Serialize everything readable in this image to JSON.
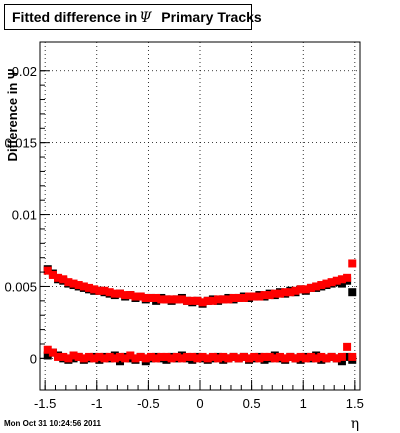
{
  "title": {
    "prefix": "Fitted difference in",
    "symbol": "Ψ",
    "suffix": "Primary Tracks"
  },
  "timestamp": "Mon Oct 31 10:24:56 2011",
  "colors": {
    "series_black": "#000000",
    "series_red": "#ff0000",
    "grid": "#000000"
  },
  "chart_data": {
    "type": "scatter",
    "title": "Fitted difference in Ψ   Primary Tracks",
    "xlabel": "η",
    "ylabel": "Difference in Ψ",
    "xlim": [
      -1.55,
      1.55
    ],
    "ylim": [
      -0.0022,
      0.022
    ],
    "grid": true,
    "x_ticks": [
      -1.5,
      -1,
      -0.5,
      0,
      0.5,
      1,
      1.5
    ],
    "x_tick_labels": [
      "-1.5",
      "-1",
      "-0.5",
      "0",
      "0.5",
      "1",
      "1.5"
    ],
    "y_ticks": [
      0,
      0.005,
      0.01,
      0.015,
      0.02
    ],
    "y_tick_labels": [
      "0",
      "0.005",
      "0.01",
      "0.015",
      "0.02"
    ],
    "x": [
      -1.475,
      -1.425,
      -1.375,
      -1.325,
      -1.275,
      -1.225,
      -1.175,
      -1.125,
      -1.075,
      -1.025,
      -0.975,
      -0.925,
      -0.875,
      -0.825,
      -0.775,
      -0.725,
      -0.675,
      -0.625,
      -0.575,
      -0.525,
      -0.475,
      -0.425,
      -0.375,
      -0.325,
      -0.275,
      -0.225,
      -0.175,
      -0.125,
      -0.075,
      -0.025,
      0.025,
      0.075,
      0.125,
      0.175,
      0.225,
      0.275,
      0.325,
      0.375,
      0.425,
      0.475,
      0.525,
      0.575,
      0.625,
      0.675,
      0.725,
      0.775,
      0.825,
      0.875,
      0.925,
      0.975,
      1.025,
      1.075,
      1.125,
      1.175,
      1.225,
      1.275,
      1.325,
      1.375,
      1.425,
      1.475
    ],
    "series": [
      {
        "color": "#000000",
        "marker": "square",
        "values": [
          0.0062,
          0.0059,
          0.0055,
          0.0054,
          0.0052,
          0.0051,
          0.005,
          0.0049,
          0.0048,
          0.0047,
          0.0047,
          0.0046,
          0.0045,
          0.0044,
          0.0045,
          0.0043,
          0.0044,
          0.0042,
          0.0043,
          0.0041,
          0.0042,
          0.004,
          0.0042,
          0.0041,
          0.004,
          0.0041,
          0.0042,
          0.004,
          0.0039,
          0.004,
          0.0038,
          0.004,
          0.0041,
          0.004,
          0.0041,
          0.0042,
          0.0041,
          0.0042,
          0.0043,
          0.0042,
          0.0043,
          0.0044,
          0.0043,
          0.0045,
          0.0044,
          0.0046,
          0.0045,
          0.0047,
          0.0046,
          0.0048,
          0.0047,
          0.0049,
          0.0049,
          0.005,
          0.0051,
          0.0052,
          0.0053,
          0.0052,
          0.0054,
          0.0046
        ]
      },
      {
        "color": "#000000",
        "marker": "square",
        "values": [
          0.0002,
          0.0004,
          0.0002,
          0.0,
          -0.0001,
          0.0,
          0.0001,
          -0.0001,
          0.0,
          0.0001,
          -0.0001,
          0.0001,
          0.0,
          0.0002,
          -0.0002,
          0.0001,
          0.0,
          -0.0001,
          0.0001,
          -0.0002,
          0.0,
          0.0001,
          0.0,
          -0.0001,
          0.0001,
          0.0,
          0.0002,
          0.0,
          -0.0001,
          0.0001,
          0.0,
          -0.0001,
          0.0,
          0.0001,
          -0.0001,
          0.0,
          0.0001,
          0.0,
          0.0001,
          -0.0001,
          0.0,
          0.0001,
          -0.0001,
          0.0,
          0.0002,
          0.0,
          -0.0001,
          0.0001,
          0.0,
          -0.0001,
          0.0001,
          0.0,
          0.0002,
          -0.0001,
          0.0,
          0.0001,
          0.0,
          -0.0002,
          0.0001,
          -0.0001
        ]
      },
      {
        "color": "#ff0000",
        "marker": "square",
        "values": [
          0.0061,
          0.0058,
          0.0056,
          0.0055,
          0.0053,
          0.0052,
          0.0051,
          0.005,
          0.0049,
          0.0048,
          0.0047,
          0.0047,
          0.0046,
          0.0045,
          0.0045,
          0.0044,
          0.0044,
          0.0043,
          0.0043,
          0.0042,
          0.0042,
          0.0042,
          0.0041,
          0.0041,
          0.0041,
          0.0041,
          0.0041,
          0.004,
          0.004,
          0.004,
          0.0039,
          0.004,
          0.004,
          0.0041,
          0.0041,
          0.0041,
          0.0042,
          0.0042,
          0.0042,
          0.0043,
          0.0043,
          0.0043,
          0.0044,
          0.0044,
          0.0045,
          0.0045,
          0.0046,
          0.0046,
          0.0047,
          0.0048,
          0.0048,
          0.0049,
          0.005,
          0.0051,
          0.0052,
          0.0053,
          0.0054,
          0.0055,
          0.0056,
          0.0066
        ]
      },
      {
        "color": "#ff0000",
        "marker": "square",
        "values": [
          0.0006,
          0.0004,
          0.0001,
          0.0001,
          0.0,
          0.0002,
          0.0001,
          0.0,
          0.0001,
          0.0,
          0.0001,
          0.0,
          0.0001,
          0.0,
          0.0001,
          0.0,
          0.0002,
          0.0,
          0.0001,
          0.0,
          0.0001,
          0.0,
          0.0001,
          0.0001,
          0.0,
          0.0001,
          0.0,
          0.0001,
          0.0001,
          0.0,
          0.0001,
          0.0,
          0.0001,
          0.0,
          0.0001,
          0.0,
          0.0001,
          0.0,
          0.0001,
          0.0,
          0.0001,
          0.0,
          0.0001,
          0.0001,
          0.0,
          0.0001,
          0.0,
          0.0001,
          0.0,
          0.0001,
          0.0,
          0.0001,
          0.0,
          0.0001,
          0.0,
          0.0001,
          0.0,
          0.0001,
          0.0008,
          0.0001
        ]
      }
    ]
  }
}
